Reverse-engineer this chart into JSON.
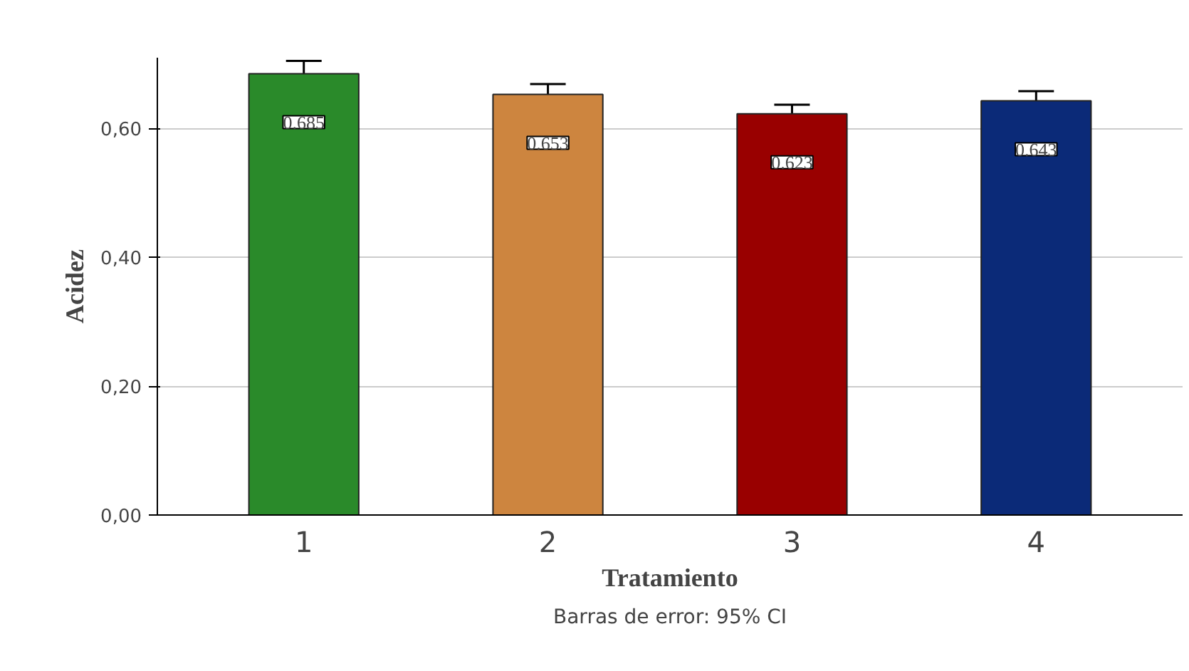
{
  "chart_data": {
    "type": "bar",
    "xlabel": "Tratamiento",
    "ylabel": "Acidez",
    "categories": [
      "1",
      "2",
      "3",
      "4"
    ],
    "values": [
      0.685,
      0.653,
      0.623,
      0.643
    ],
    "colors": [
      "#2a8a2a",
      "#cd853f",
      "#990000",
      "#0b2a78"
    ],
    "errors": [
      0.02,
      0.016,
      0.014,
      0.015
    ],
    "data_labels": true,
    "ylim": [
      0,
      0.71
    ],
    "yticks": [
      {
        "value": 0,
        "label": "0,00"
      },
      {
        "value": 0.2,
        "label": "0,20"
      },
      {
        "value": 0.4,
        "label": "0,40"
      },
      {
        "value": 0.6,
        "label": "0,60"
      }
    ],
    "grid": "y",
    "annotations": [
      "Barras de error: 95% CI"
    ]
  }
}
